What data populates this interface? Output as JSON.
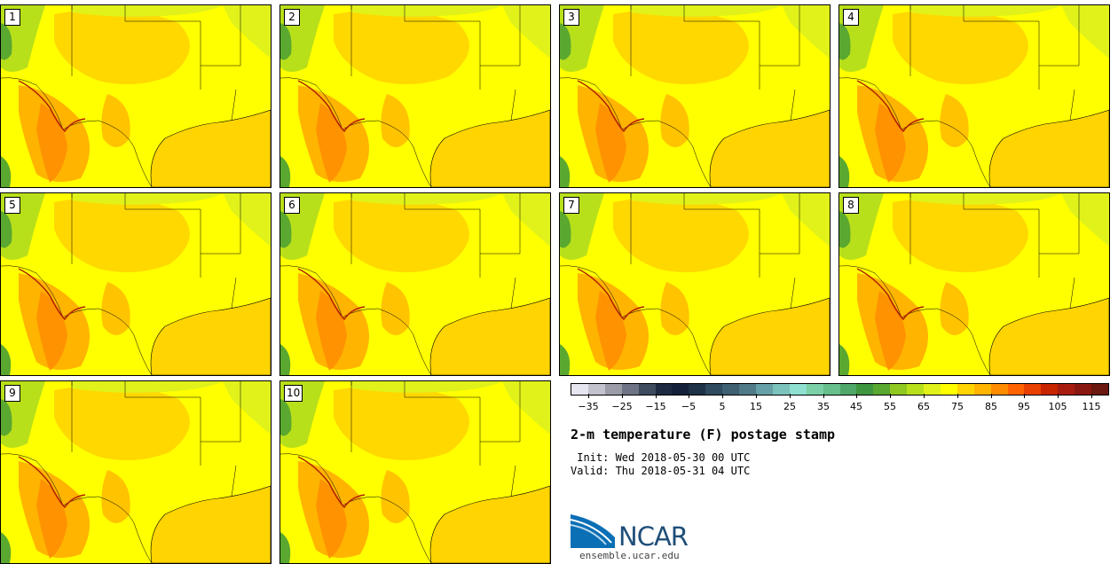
{
  "panels": [
    {
      "label": "1"
    },
    {
      "label": "2"
    },
    {
      "label": "3"
    },
    {
      "label": "4"
    },
    {
      "label": "5"
    },
    {
      "label": "6"
    },
    {
      "label": "7"
    },
    {
      "label": "8"
    },
    {
      "label": "9"
    },
    {
      "label": "10"
    }
  ],
  "colorbar": {
    "colors": [
      "#e6e6f0",
      "#c2c2cc",
      "#9b9ca8",
      "#6e7485",
      "#3e4a5e",
      "#1e2a40",
      "#14203a",
      "#1e3246",
      "#2e4a5e",
      "#3e6070",
      "#507a88",
      "#66a0a6",
      "#7cc2bc",
      "#8ee0d0",
      "#7ad0a8",
      "#66bf8c",
      "#4fa86a",
      "#3e9640",
      "#5aa830",
      "#8ec820",
      "#b8e01a",
      "#e0f21a",
      "#ffff00",
      "#ffd400",
      "#ffb400",
      "#ff8c00",
      "#ff6400",
      "#e84000",
      "#c82400",
      "#a81c10",
      "#8a1810",
      "#6a1810"
    ],
    "tick_labels": [
      "−35",
      "−25",
      "−15",
      "−5",
      "5",
      "15",
      "25",
      "35",
      "45",
      "55",
      "65",
      "75",
      "85",
      "95",
      "105",
      "115"
    ]
  },
  "title": "2-m temperature (F) postage stamp",
  "init": " Init: Wed 2018-05-30 00 UTC",
  "valid": "Valid: Thu 2018-05-31 04 UTC",
  "logo": {
    "text": "NCAR",
    "website": "ensemble.ucar.edu"
  }
}
